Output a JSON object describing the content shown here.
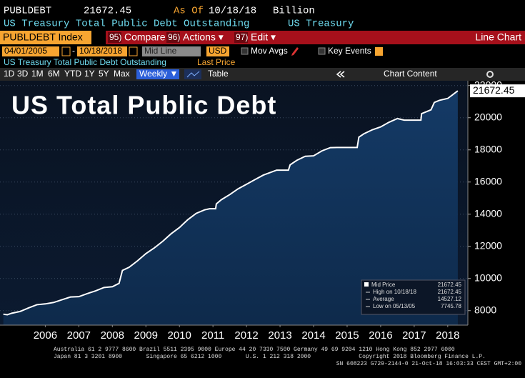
{
  "header": {
    "ticker": "PUBLDEBT",
    "price": 21672.45,
    "as_of_label": "As Of",
    "as_of_date": "10/18/18",
    "unit": "Billion",
    "description": "US Treasury Total Public Debt Outstanding",
    "source": "US Treasury"
  },
  "toolbar": {
    "security": "PUBLDEBT Index",
    "compare_key": "95)",
    "compare": "Compare",
    "actions_key": "96)",
    "actions": "Actions ▾",
    "edit_key": "97)",
    "edit": "Edit ▾",
    "chart_kind": "Line Chart",
    "start_date": "04/01/2005",
    "date_sep": "-",
    "end_date": "10/18/2018",
    "line_mode": "Mid Line",
    "currency": "USD",
    "mov_avgs": "Mov Avgs",
    "key_events": "Key Events",
    "series_label": "US Treasury Total Public Debt Outstanding",
    "field": "Last Price",
    "periods": [
      "1D",
      "3D",
      "1M",
      "6M",
      "YTD",
      "1Y",
      "5Y",
      "Max"
    ],
    "frequency": "Weekly ▼",
    "table": "Table",
    "chart_content": "Chart Content"
  },
  "chart_data": {
    "type": "line",
    "title": "US Total Public Debt",
    "x": [
      2005.25,
      2005.37,
      2005.5,
      2005.75,
      2006.0,
      2006.25,
      2006.5,
      2006.75,
      2007.0,
      2007.25,
      2007.5,
      2007.75,
      2008.0,
      2008.25,
      2008.5,
      2008.7,
      2008.8,
      2009.0,
      2009.25,
      2009.5,
      2009.75,
      2010.0,
      2010.25,
      2010.5,
      2010.75,
      2011.0,
      2011.25,
      2011.4,
      2011.58,
      2011.6,
      2011.75,
      2012.0,
      2012.25,
      2012.5,
      2012.75,
      2013.0,
      2013.4,
      2013.75,
      2013.8,
      2014.0,
      2014.25,
      2014.5,
      2014.75,
      2015.0,
      2015.2,
      2015.8,
      2015.85,
      2016.0,
      2016.25,
      2016.5,
      2016.75,
      2017.0,
      2017.2,
      2017.7,
      2017.72,
      2018.0,
      2018.1,
      2018.25,
      2018.5,
      2018.8
    ],
    "series": [
      {
        "name": "Mid Price",
        "color": "#ffffff",
        "values": [
          7777,
          7746,
          7840,
          7950,
          8170,
          8370,
          8420,
          8510,
          8680,
          8850,
          8870,
          9060,
          9230,
          9440,
          9490,
          9700,
          10500,
          10700,
          11100,
          11550,
          11900,
          12310,
          12780,
          13170,
          13660,
          14050,
          14270,
          14340,
          14340,
          14640,
          14900,
          15220,
          15580,
          15860,
          16150,
          16430,
          16740,
          16740,
          17070,
          17350,
          17600,
          17630,
          17940,
          18140,
          18150,
          18150,
          18790,
          19000,
          19250,
          19430,
          19720,
          19950,
          19850,
          19850,
          20250,
          20490,
          20950,
          21080,
          21200,
          21672.45
        ]
      }
    ],
    "xlim": [
      2005.15,
      2019.1
    ],
    "xticks": [
      {
        "value": 2006.5,
        "label": "2006"
      },
      {
        "value": 2007.5,
        "label": "2007"
      },
      {
        "value": 2008.5,
        "label": "2008"
      },
      {
        "value": 2009.5,
        "label": "2009"
      },
      {
        "value": 2010.5,
        "label": "2010"
      },
      {
        "value": 2011.5,
        "label": "2011"
      },
      {
        "value": 2012.5,
        "label": "2012"
      },
      {
        "value": 2013.5,
        "label": "2013"
      },
      {
        "value": 2014.5,
        "label": "2014"
      },
      {
        "value": 2015.5,
        "label": "2015"
      },
      {
        "value": 2016.5,
        "label": "2016"
      },
      {
        "value": 2017.5,
        "label": "2017"
      },
      {
        "value": 2018.5,
        "label": "2018"
      }
    ],
    "ylim": [
      7100,
      22300
    ],
    "yticks": [
      8000,
      10000,
      12000,
      14000,
      16000,
      18000,
      20000,
      22000
    ],
    "grid": true,
    "stats": [
      {
        "label": "High on 10/18/18",
        "value": 21672.45
      },
      {
        "label": "Average",
        "value": 14527.12
      },
      {
        "label": "Low on 05/13/05",
        "value": 7745.78
      }
    ]
  },
  "footer": {
    "lines": [
      "Australia 61 2 9777 8600 Brazil 5511 2395 9000 Europe 44 20 7330 7500 Germany 49 69 9204 1210 Hong Kong 852 2977 6000",
      "Japan 81 3 3201 8900       Singapore 65 6212 1000       U.S. 1 212 318 2000              Copyright 2018 Bloomberg Finance L.P.",
      "SN 608223 G729-2144-0 21-Oct-18 16:03:33 CEST GMT+2:00"
    ]
  }
}
